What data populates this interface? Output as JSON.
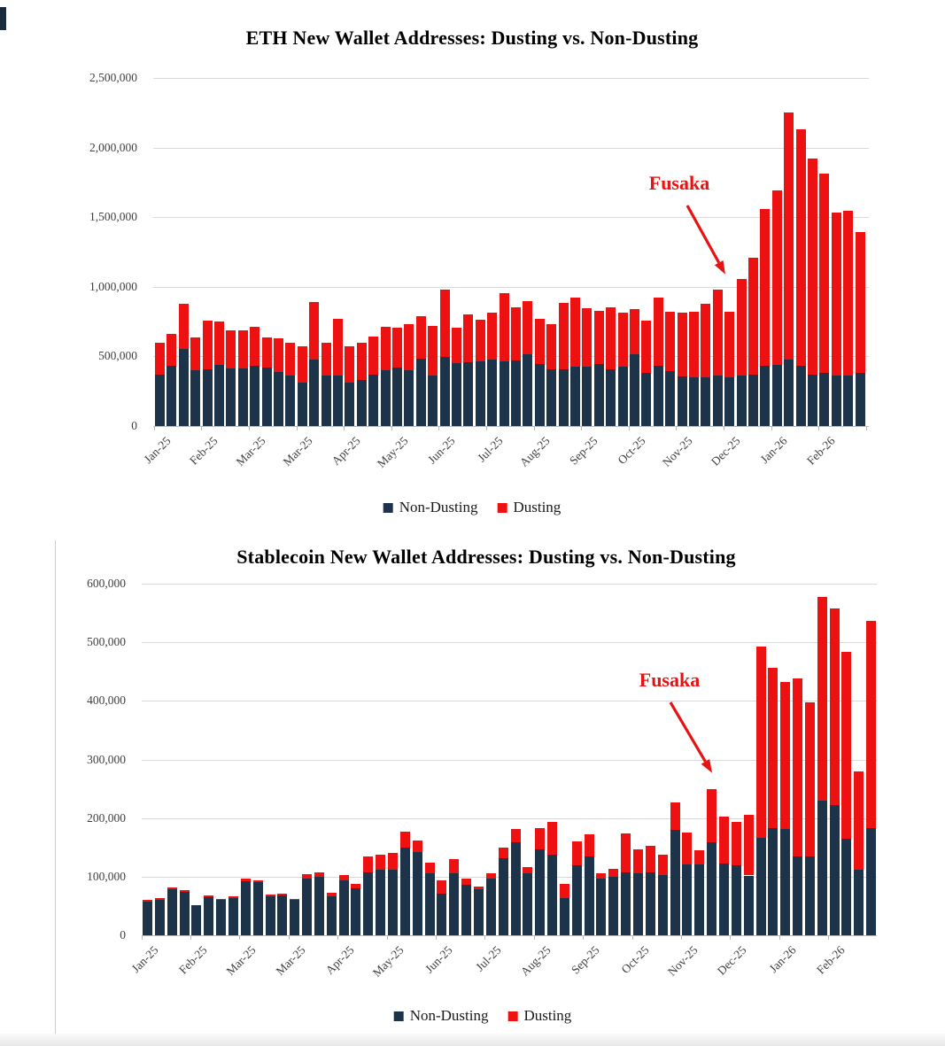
{
  "colors": {
    "non_dusting": "#1d3349",
    "dusting": "#ee1111",
    "annotation_red": "#e81212",
    "gridline": "#d9d9d9",
    "axis_text": "#3f3f3f",
    "title_text": "#000000"
  },
  "annotation_label": "Fusaka",
  "chart_data": [
    {
      "type": "bar",
      "stacked": true,
      "title": "ETH New Wallet Addresses: Dusting vs. Non-Dusting",
      "xlabel": "",
      "ylabel": "",
      "ylim": [
        0,
        2500000
      ],
      "grid": true,
      "legend_position": "bottom",
      "bar_count": 60,
      "ytick_values": [
        2500000,
        2000000,
        1500000,
        1000000,
        500000,
        0
      ],
      "ytick_labels": [
        "2,500,000",
        "2,000,000",
        "1,500,000",
        "1,000,000",
        "500,000",
        "0"
      ],
      "xtick_labels": [
        "Jan-25",
        "Feb-25",
        "Mar-25",
        "Mar-25",
        "Apr-25",
        "May-25",
        "Jun-25",
        "Jul-25",
        "Aug-25",
        "Sep-25",
        "Oct-25",
        "Nov-25",
        "Dec-25",
        "Jan-26",
        "Feb-26"
      ],
      "xtick_every": 4,
      "annotation": {
        "text": "Fusaka",
        "points_to": "Dec-25"
      },
      "series": [
        {
          "name": "Non-Dusting",
          "color": "#1d3349",
          "values": [
            370000,
            430000,
            555000,
            400000,
            405000,
            440000,
            415000,
            415000,
            430000,
            420000,
            390000,
            360000,
            310000,
            480000,
            360000,
            365000,
            310000,
            330000,
            370000,
            400000,
            420000,
            400000,
            485000,
            365000,
            495000,
            450000,
            455000,
            465000,
            480000,
            467000,
            473000,
            516000,
            446000,
            410000,
            406000,
            425000,
            425000,
            446000,
            410000,
            425000,
            516000,
            384000,
            431000,
            393000,
            357000,
            350000,
            350000,
            365000,
            350000,
            360000,
            370000,
            430000,
            440000,
            480000,
            435000,
            370000,
            380000,
            365000,
            365000,
            380000
          ]
        },
        {
          "name": "Dusting",
          "color": "#ee1111",
          "values": [
            230000,
            230000,
            325000,
            235000,
            350000,
            310000,
            275000,
            275000,
            280000,
            215000,
            240000,
            240000,
            265000,
            410000,
            240000,
            405000,
            260000,
            265000,
            270000,
            315000,
            285000,
            330000,
            305000,
            355000,
            485000,
            255000,
            345000,
            300000,
            335000,
            488000,
            382000,
            384000,
            324000,
            320000,
            479000,
            495000,
            420000,
            379000,
            445000,
            390000,
            324000,
            371000,
            489000,
            427000,
            458000,
            470000,
            525000,
            615000,
            470000,
            695000,
            840000,
            1130000,
            1250000,
            1770000,
            1695000,
            1550000,
            1435000,
            1165000,
            1180000,
            1010000
          ]
        }
      ]
    },
    {
      "type": "bar",
      "stacked": true,
      "title": "Stablecoin New Wallet Addresses: Dusting vs. Non-Dusting",
      "xlabel": "",
      "ylabel": "",
      "ylim": [
        0,
        600000
      ],
      "grid": true,
      "legend_position": "bottom",
      "bar_count": 60,
      "ytick_values": [
        600000,
        500000,
        400000,
        300000,
        200000,
        100000,
        0
      ],
      "ytick_labels": [
        "600,000",
        "500,000",
        "400,000",
        "300,000",
        "200,000",
        "100,000",
        "0"
      ],
      "xtick_labels": [
        "Jan-25",
        "Feb-25",
        "Mar-25",
        "Mar-25",
        "Apr-25",
        "May-25",
        "Jun-25",
        "Jul-25",
        "Aug-25",
        "Sep-25",
        "Oct-25",
        "Nov-25",
        "Dec-25",
        "Jan-26",
        "Feb-26"
      ],
      "xtick_every": 4,
      "annotation": {
        "text": "Fusaka",
        "points_to": "Nov-25 / Dec-25 spike"
      },
      "series": [
        {
          "name": "Non-Dusting",
          "color": "#1d3349",
          "values": [
            58000,
            61000,
            78000,
            74000,
            51000,
            65000,
            60000,
            63000,
            92000,
            91000,
            66000,
            68000,
            60000,
            97000,
            99000,
            66000,
            93000,
            80000,
            108000,
            112000,
            112000,
            149000,
            142000,
            106000,
            71000,
            106000,
            86000,
            78000,
            96000,
            132000,
            159000,
            106000,
            146000,
            138000,
            64000,
            120000,
            135000,
            96000,
            99000,
            107000,
            106000,
            107000,
            103000,
            180000,
            121000,
            121000,
            158000,
            123000,
            120000,
            102000,
            166000,
            183000,
            182000,
            135000,
            135000,
            229000,
            222000,
            165000,
            112000,
            183000
          ]
        },
        {
          "name": "Dusting",
          "color": "#ee1111",
          "values": [
            2000,
            2000,
            4000,
            3000,
            1000,
            3000,
            2000,
            3000,
            4000,
            3000,
            3000,
            3000,
            2000,
            7000,
            8000,
            6000,
            10000,
            7000,
            27000,
            26000,
            28000,
            28000,
            19000,
            18000,
            22000,
            24000,
            10000,
            5000,
            10000,
            18000,
            23000,
            11000,
            37000,
            55000,
            23000,
            40000,
            38000,
            10000,
            14000,
            67000,
            41000,
            45000,
            35000,
            46000,
            54000,
            24000,
            92000,
            79000,
            73000,
            103000,
            327000,
            273000,
            250000,
            304000,
            263000,
            349000,
            335000,
            319000,
            167000,
            353000
          ]
        }
      ]
    }
  ]
}
